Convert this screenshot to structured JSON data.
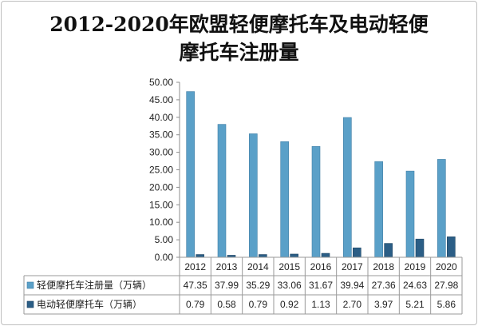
{
  "chart_data": {
    "type": "bar",
    "title_line1": "2012-2020年欧盟轻便摩托车及电动轻便",
    "title_line2": "摩托车注册量",
    "categories": [
      "2012",
      "2013",
      "2014",
      "2015",
      "2016",
      "2017",
      "2018",
      "2019",
      "2020"
    ],
    "series": [
      {
        "name": "轻便摩托车注册量（万辆）",
        "values": [
          47.35,
          37.99,
          35.29,
          33.06,
          31.67,
          39.94,
          27.36,
          24.63,
          27.98
        ],
        "labels": [
          "47.35",
          "37.99",
          "35.29",
          "33.06",
          "31.67",
          "39.94",
          "27.36",
          "24.63",
          "27.98"
        ],
        "color": "#5aa0c8"
      },
      {
        "name": "电动轻便摩托车（万辆）",
        "values": [
          0.79,
          0.58,
          0.79,
          0.92,
          1.13,
          2.7,
          3.97,
          5.21,
          5.86
        ],
        "labels": [
          "0.79",
          "0.58",
          "0.79",
          "0.92",
          "1.13",
          "2.70",
          "3.97",
          "5.21",
          "5.86"
        ],
        "color": "#2b5e86"
      }
    ],
    "y_ticks": [
      "0.00",
      "5.00",
      "10.00",
      "15.00",
      "20.00",
      "25.00",
      "30.00",
      "35.00",
      "40.00",
      "45.00",
      "50.00"
    ],
    "ylim": [
      0,
      50
    ],
    "legend": "data-table",
    "grid": false
  }
}
